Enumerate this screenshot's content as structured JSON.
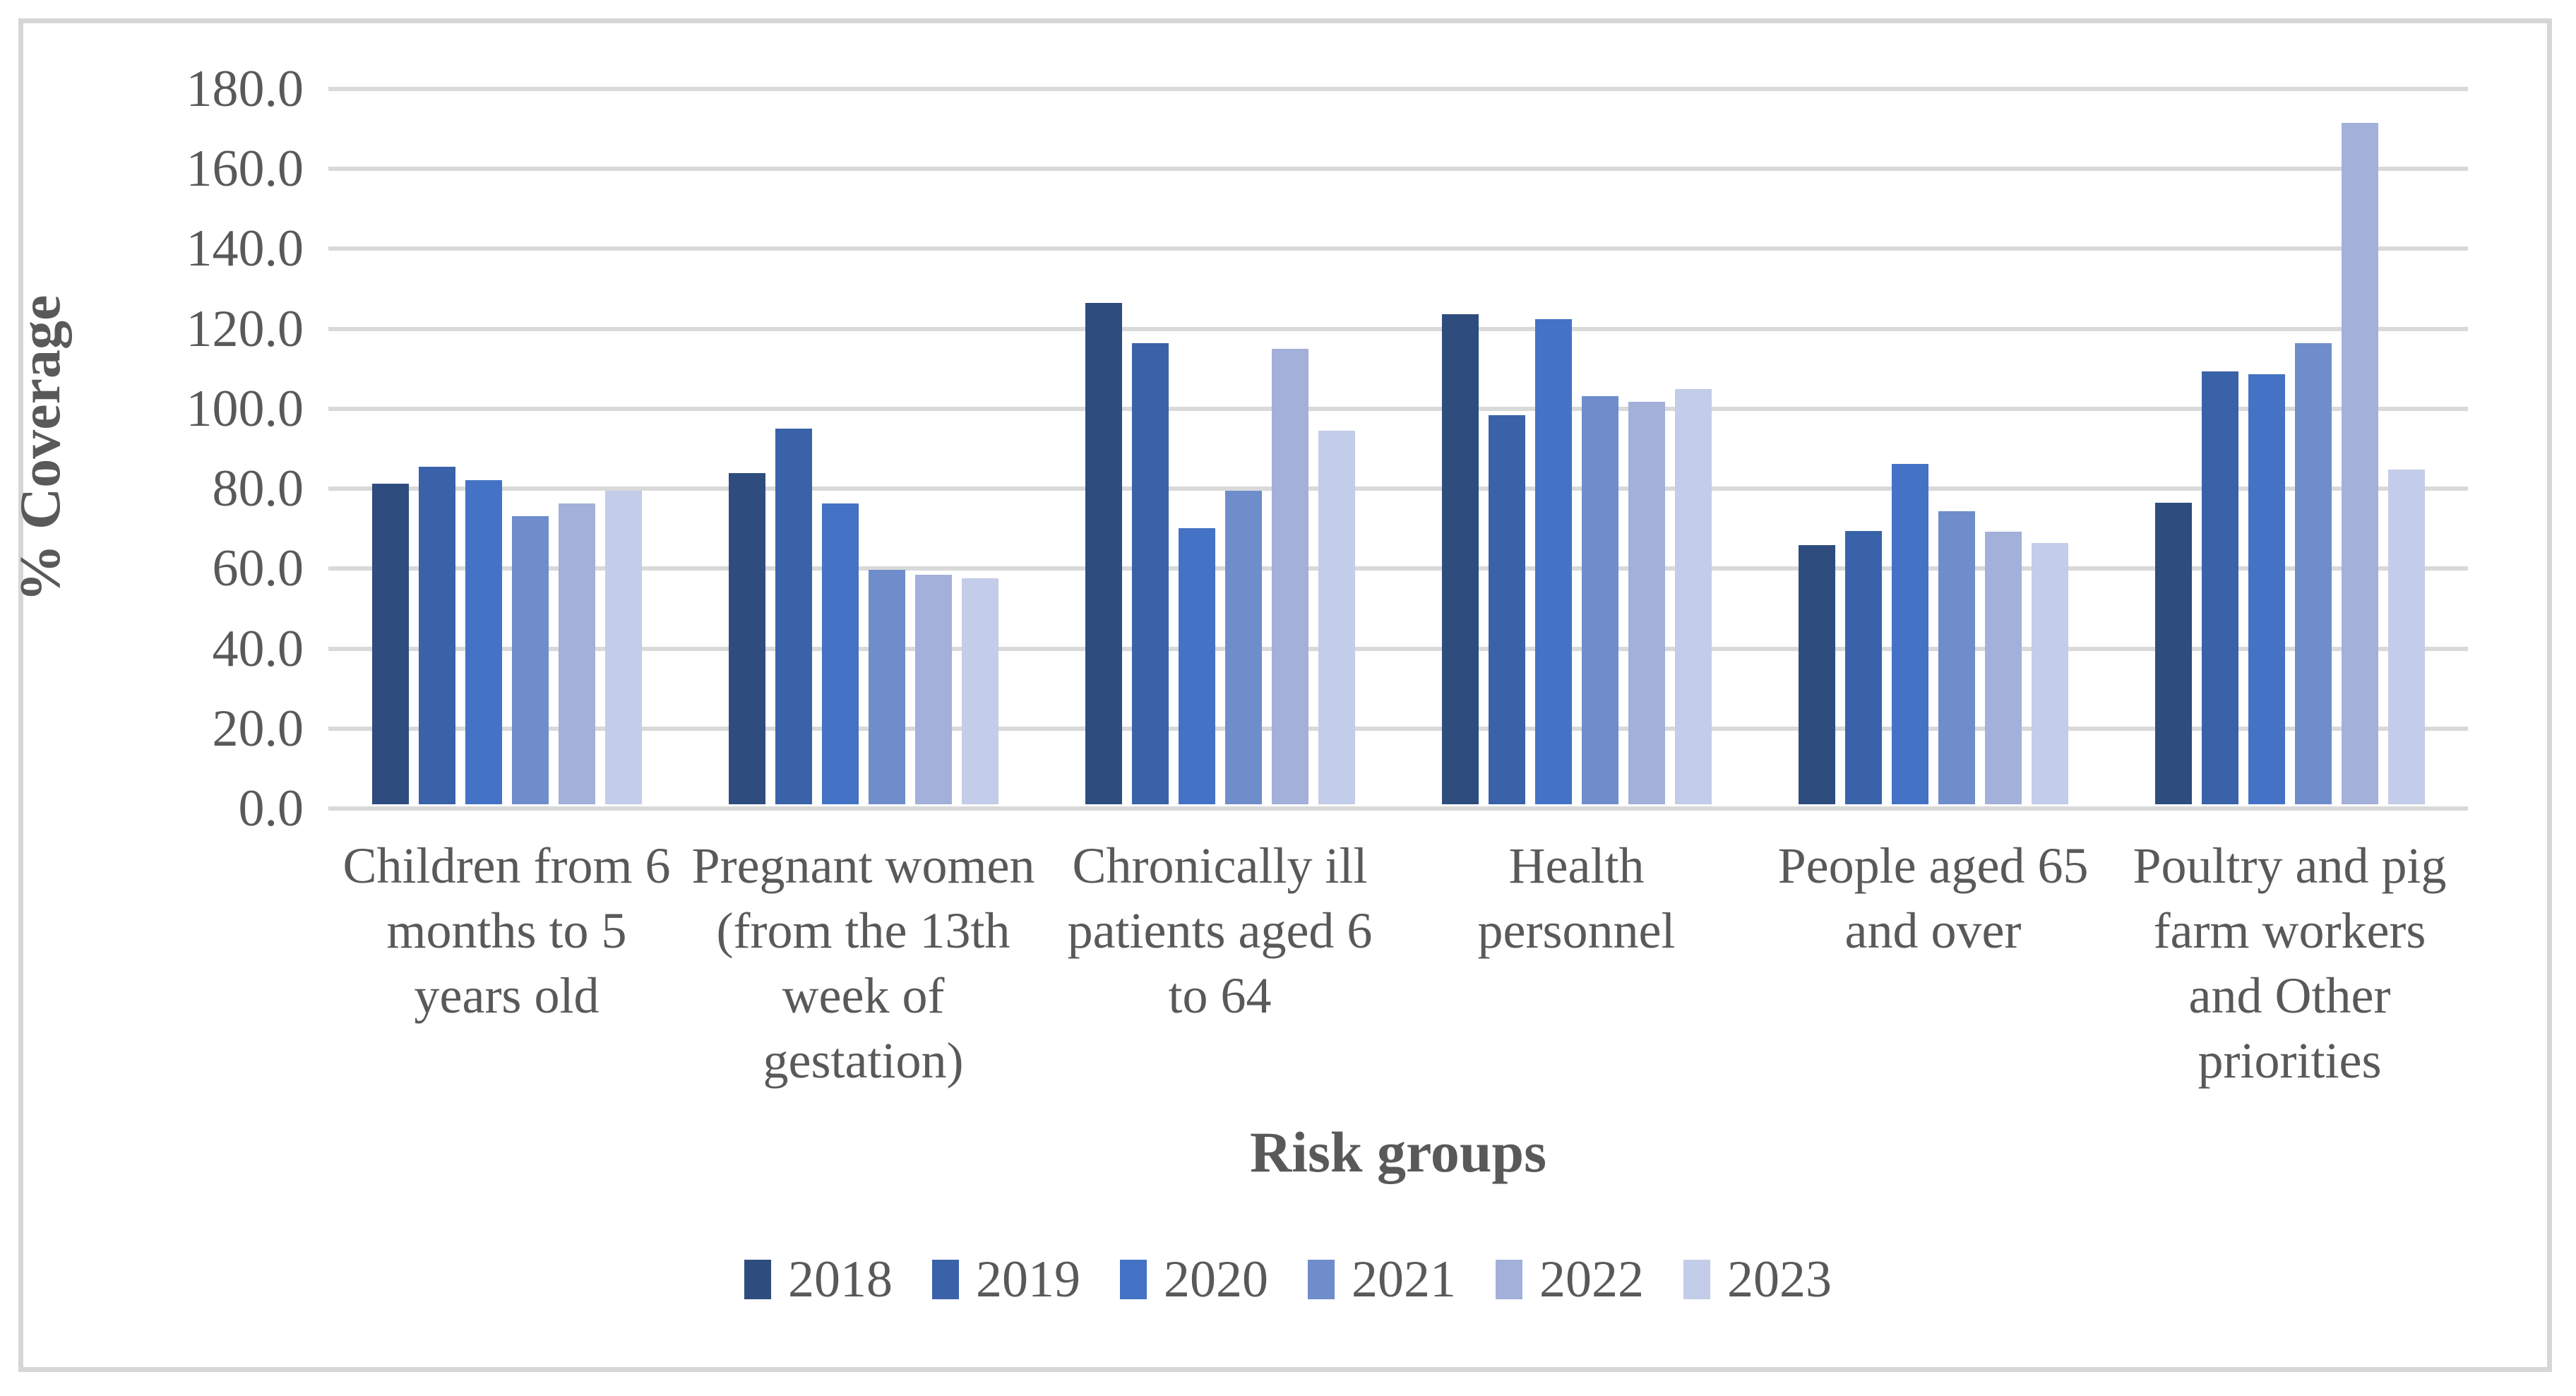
{
  "figure": {
    "background": "#FFFFFF",
    "border_color": "#D6D6D6",
    "text_color": "#595959",
    "gridline_color": "#D9D9D9"
  },
  "chart_data": {
    "type": "bar",
    "title": "",
    "xlabel": "Risk groups",
    "ylabel": "% Coverage",
    "ylim": [
      0,
      180
    ],
    "ytick_step": 20,
    "ytick_labels": [
      "180.0",
      "160.0",
      "140.0",
      "120.0",
      "100.0",
      "80.0",
      "60.0",
      "40.0",
      "20.0",
      "0.0"
    ],
    "grid": true,
    "legend_position": "bottom",
    "categories": [
      "Children from 6 months to 5 years old",
      "Pregnant women (from the 13th week of gestation)",
      "Chronically ill patients aged 6 to 64",
      "Health personnel",
      "People aged 65 and over",
      "Poultry and pig farm workers and Other priorities"
    ],
    "category_lines": [
      [
        "Children from 6",
        "months to 5",
        "years old"
      ],
      [
        "Pregnant women",
        "(from the 13th",
        "week of",
        "gestation)"
      ],
      [
        "Chronically ill",
        "patients aged 6",
        "to 64"
      ],
      [
        "Health",
        "personnel"
      ],
      [
        "People aged 65",
        "and over"
      ],
      [
        "Poultry and pig",
        "farm workers",
        "and Other",
        "priorities"
      ]
    ],
    "series": [
      {
        "name": "2018",
        "color": "#2E4D7E",
        "values": [
          80.2,
          82.8,
          125.5,
          122.6,
          64.9,
          75.5
        ]
      },
      {
        "name": "2019",
        "color": "#3A62A9",
        "values": [
          84.5,
          94.0,
          115.4,
          97.4,
          68.3,
          108.2
        ]
      },
      {
        "name": "2020",
        "color": "#4472C4",
        "values": [
          81.0,
          75.2,
          69.1,
          121.4,
          85.1,
          107.5
        ]
      },
      {
        "name": "2021",
        "color": "#6F8DCB",
        "values": [
          72.1,
          58.7,
          78.5,
          102.1,
          73.3,
          115.4
        ]
      },
      {
        "name": "2022",
        "color": "#A2B0DA",
        "values": [
          75.3,
          57.4,
          113.9,
          100.6,
          68.2,
          170.5
        ]
      },
      {
        "name": "2023",
        "color": "#C3CCE8",
        "values": [
          78.4,
          56.6,
          93.4,
          103.9,
          65.3,
          83.8
        ]
      }
    ]
  }
}
